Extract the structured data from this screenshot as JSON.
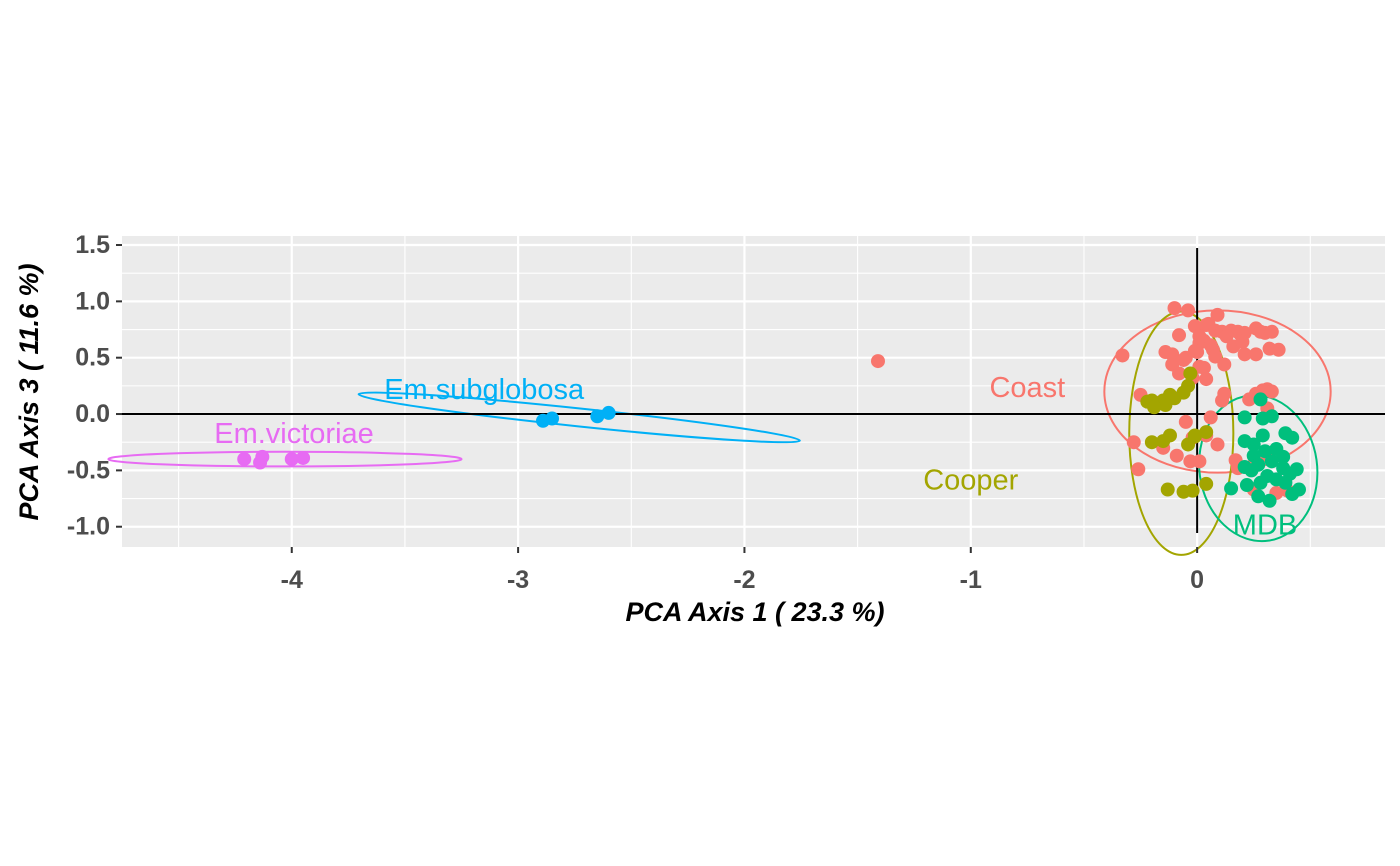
{
  "chart_data": {
    "type": "scatter",
    "xlabel": "PCA Axis 1 ( 23.3 %)",
    "ylabel": "PCA Axis 3 ( 11.6 %)",
    "xlim": [
      -4.75,
      0.83
    ],
    "ylim": [
      -1.18,
      1.58
    ],
    "x_ticks": [
      -4,
      -3,
      -2,
      -1,
      0
    ],
    "x_tick_labels": [
      "-4",
      "-3",
      "-2",
      "-1",
      "0"
    ],
    "y_ticks": [
      -1.0,
      -0.5,
      0.0,
      0.5,
      1.0,
      1.5
    ],
    "y_tick_labels": [
      "-1.0",
      "-0.5",
      "0.0",
      "0.5",
      "1.0",
      "1.5"
    ],
    "grid": true,
    "reference_lines": {
      "x": 0,
      "y": 0
    },
    "legend": "none",
    "series": [
      {
        "name": "Coast",
        "color": "#F8766D",
        "label": "Coast",
        "ellipse": {
          "cx": 0.09,
          "cy": 0.2,
          "rx": 0.5,
          "ry": 0.72,
          "angle_deg": 0
        },
        "points": [
          [
            -1.41,
            0.47
          ],
          [
            -0.33,
            0.52
          ],
          [
            -0.04,
            0.92
          ],
          [
            -0.1,
            0.94
          ],
          [
            0.09,
            0.88
          ],
          [
            -0.01,
            0.78
          ],
          [
            0.04,
            0.79
          ],
          [
            0.05,
            0.8
          ],
          [
            0.08,
            0.74
          ],
          [
            0.11,
            0.73
          ],
          [
            0.15,
            0.74
          ],
          [
            0.18,
            0.73
          ],
          [
            0.19,
            0.71
          ],
          [
            0.21,
            0.72
          ],
          [
            0.26,
            0.76
          ],
          [
            0.28,
            0.73
          ],
          [
            0.3,
            0.72
          ],
          [
            0.33,
            0.73
          ],
          [
            0.01,
            0.69
          ],
          [
            -0.08,
            0.7
          ],
          [
            0.13,
            0.69
          ],
          [
            0.01,
            0.63
          ],
          [
            0.03,
            0.65
          ],
          [
            0.06,
            0.61
          ],
          [
            -0.01,
            0.56
          ],
          [
            0.0,
            0.55
          ],
          [
            0.07,
            0.57
          ],
          [
            0.16,
            0.6
          ],
          [
            0.2,
            0.64
          ],
          [
            0.32,
            0.58
          ],
          [
            0.36,
            0.57
          ],
          [
            -0.14,
            0.55
          ],
          [
            -0.11,
            0.53
          ],
          [
            0.21,
            0.53
          ],
          [
            0.26,
            0.53
          ],
          [
            -0.05,
            0.5
          ],
          [
            0.08,
            0.51
          ],
          [
            -0.11,
            0.44
          ],
          [
            -0.06,
            0.48
          ],
          [
            0.01,
            0.42
          ],
          [
            0.03,
            0.41
          ],
          [
            0.12,
            0.44
          ],
          [
            -0.08,
            0.36
          ],
          [
            0.04,
            0.31
          ],
          [
            -0.02,
            0.32
          ],
          [
            0.29,
            0.21
          ],
          [
            0.31,
            0.22
          ],
          [
            0.33,
            0.2
          ],
          [
            0.26,
            0.18
          ],
          [
            0.12,
            0.18
          ],
          [
            -0.25,
            0.17
          ],
          [
            -0.17,
            0.1
          ],
          [
            0.11,
            0.12
          ],
          [
            0.23,
            0.13
          ],
          [
            0.31,
            0.05
          ],
          [
            -0.05,
            -0.07
          ],
          [
            0.06,
            -0.03
          ],
          [
            -0.28,
            -0.25
          ],
          [
            -0.02,
            -0.21
          ],
          [
            0.04,
            -0.19
          ],
          [
            0.09,
            -0.27
          ],
          [
            -0.15,
            -0.3
          ],
          [
            -0.09,
            -0.37
          ],
          [
            -0.03,
            -0.42
          ],
          [
            0.01,
            -0.42
          ],
          [
            0.17,
            -0.41
          ],
          [
            0.31,
            -0.37
          ],
          [
            0.25,
            -0.45
          ],
          [
            -0.26,
            -0.49
          ],
          [
            0.18,
            -0.48
          ],
          [
            0.25,
            -0.67
          ],
          [
            0.35,
            -0.7
          ],
          [
            0.4,
            -0.68
          ]
        ]
      },
      {
        "name": "Cooper",
        "color": "#A3A500",
        "label": "Cooper",
        "ellipse": {
          "cx": -0.07,
          "cy": -0.17,
          "rx": 0.23,
          "ry": 1.08,
          "angle_deg": 0
        },
        "points": [
          [
            -0.03,
            0.36
          ],
          [
            -0.04,
            0.25
          ],
          [
            -0.06,
            0.19
          ],
          [
            -0.12,
            0.17
          ],
          [
            -0.1,
            0.14
          ],
          [
            -0.15,
            0.12
          ],
          [
            -0.2,
            0.12
          ],
          [
            -0.22,
            0.11
          ],
          [
            -0.14,
            0.08
          ],
          [
            -0.19,
            0.06
          ],
          [
            -0.12,
            -0.19
          ],
          [
            -0.15,
            -0.24
          ],
          [
            -0.2,
            -0.25
          ],
          [
            -0.04,
            -0.27
          ],
          [
            -0.01,
            -0.2
          ],
          [
            0.04,
            -0.16
          ],
          [
            -0.01,
            -0.19
          ],
          [
            -0.13,
            -0.67
          ],
          [
            -0.06,
            -0.69
          ],
          [
            -0.02,
            -0.68
          ],
          [
            0.04,
            -0.62
          ]
        ]
      },
      {
        "name": "MDB",
        "color": "#00BF7D",
        "label": "MDB",
        "ellipse": {
          "cx": 0.27,
          "cy": -0.48,
          "rx": 0.26,
          "ry": 0.65,
          "angle_deg": -8
        },
        "points": [
          [
            0.28,
            0.13
          ],
          [
            0.21,
            -0.03
          ],
          [
            0.29,
            -0.04
          ],
          [
            0.33,
            -0.02
          ],
          [
            0.39,
            -0.17
          ],
          [
            0.42,
            -0.21
          ],
          [
            0.29,
            -0.19
          ],
          [
            0.25,
            -0.27
          ],
          [
            0.21,
            -0.24
          ],
          [
            0.35,
            -0.31
          ],
          [
            0.3,
            -0.33
          ],
          [
            0.25,
            -0.37
          ],
          [
            0.38,
            -0.38
          ],
          [
            0.33,
            -0.42
          ],
          [
            0.38,
            -0.48
          ],
          [
            0.27,
            -0.45
          ],
          [
            0.21,
            -0.47
          ],
          [
            0.41,
            -0.53
          ],
          [
            0.44,
            -0.49
          ],
          [
            0.24,
            -0.5
          ],
          [
            0.31,
            -0.55
          ],
          [
            0.35,
            -0.58
          ],
          [
            0.28,
            -0.61
          ],
          [
            0.22,
            -0.63
          ],
          [
            0.15,
            -0.66
          ],
          [
            0.27,
            -0.73
          ],
          [
            0.32,
            -0.77
          ],
          [
            0.42,
            -0.71
          ],
          [
            0.45,
            -0.67
          ],
          [
            0.39,
            -0.61
          ]
        ]
      },
      {
        "name": "Em.subglobosa",
        "color": "#00B0F6",
        "label": "Em.subglobosa",
        "ellipse": {
          "cx": -2.73,
          "cy": -0.03,
          "rx": 0.98,
          "ry": 0.08,
          "angle_deg": 6
        },
        "points": [
          [
            -2.6,
            0.01
          ],
          [
            -2.65,
            -0.02
          ],
          [
            -2.85,
            -0.04
          ],
          [
            -2.89,
            -0.06
          ]
        ]
      },
      {
        "name": "Em.victoriae",
        "color": "#E76BF3",
        "label": "Em.victoriae",
        "ellipse": {
          "cx": -4.03,
          "cy": -0.4,
          "rx": 0.78,
          "ry": 0.065,
          "angle_deg": 0
        },
        "points": [
          [
            -4.21,
            -0.4
          ],
          [
            -4.13,
            -0.38
          ],
          [
            -4.14,
            -0.43
          ],
          [
            -4.0,
            -0.4
          ],
          [
            -3.95,
            -0.39
          ]
        ]
      }
    ],
    "group_labels": [
      {
        "text": "Coast",
        "x": -0.75,
        "y": 0.22,
        "color": "#F8766D"
      },
      {
        "text": "Cooper",
        "x": -1.0,
        "y": -0.6,
        "color": "#A3A500"
      },
      {
        "text": "MDB",
        "x": 0.3,
        "y": -1.0,
        "color": "#00BF7D"
      },
      {
        "text": "Em.subglobosa",
        "x": -3.15,
        "y": 0.2,
        "color": "#00B0F6"
      },
      {
        "text": "Em.victoriae",
        "x": -3.99,
        "y": -0.19,
        "color": "#E76BF3"
      }
    ]
  }
}
